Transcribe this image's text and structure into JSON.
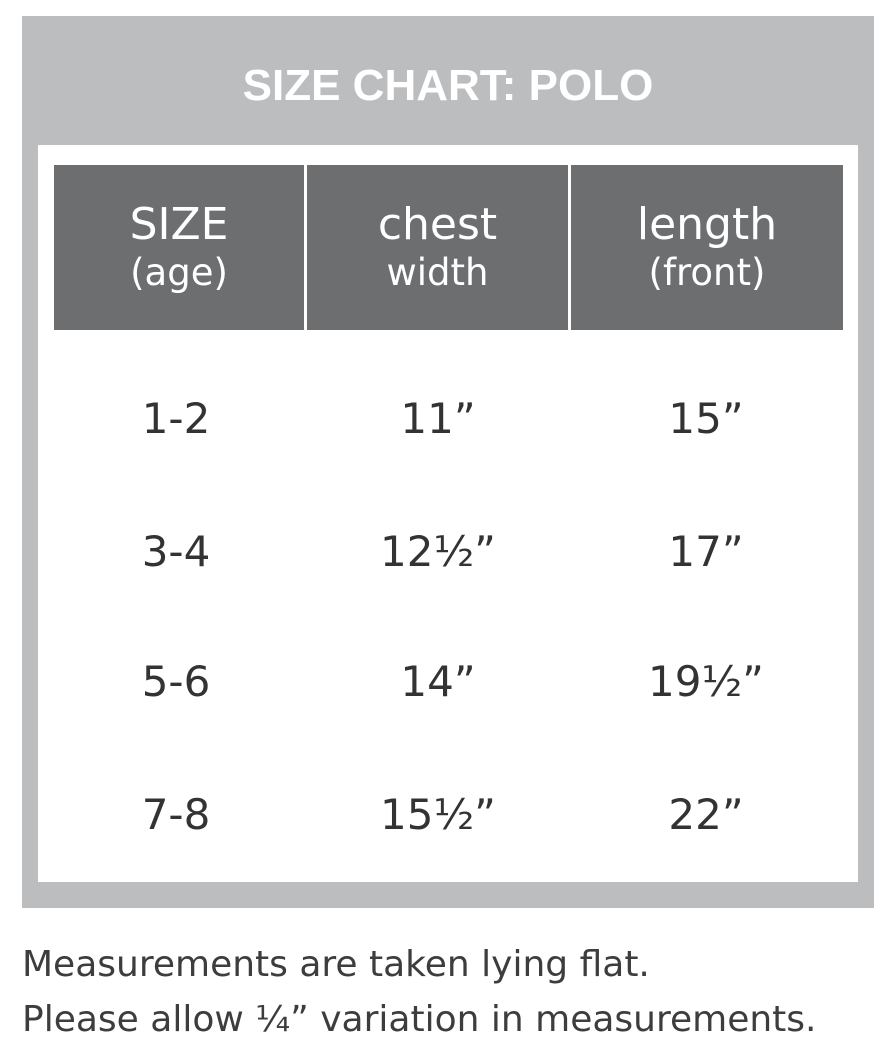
{
  "title": "SIZE CHART: POLO",
  "table": {
    "headers": [
      [
        "SIZE",
        "(age)"
      ],
      [
        "chest",
        "width"
      ],
      [
        "length",
        "(front)"
      ]
    ],
    "rows": [
      [
        "1-2",
        "11”",
        "15”"
      ],
      [
        "3-4",
        "12½”",
        "17”"
      ],
      [
        "5-6",
        "14”",
        "19½”"
      ],
      [
        "7-8",
        "15½”",
        "22”"
      ]
    ]
  },
  "notes": [
    "Measurements are taken lying flat.",
    "Please allow ¼” variation in measurements."
  ]
}
